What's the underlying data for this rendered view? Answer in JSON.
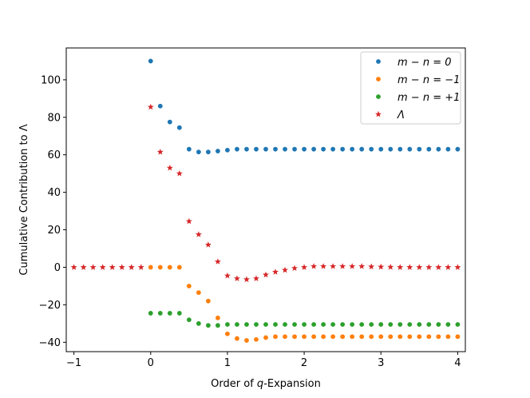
{
  "chart_data": {
    "type": "scatter",
    "xlabel_parts": {
      "pre": "Order of ",
      "var": "q",
      "post": "-Expansion"
    },
    "ylabel": "Cumulative Contribution to Λ",
    "xlim": [
      -1.1,
      4.1
    ],
    "ylim": [
      -45,
      117
    ],
    "xticks": [
      -1,
      0,
      1,
      2,
      3,
      4
    ],
    "xtick_labels": [
      "−1",
      "0",
      "1",
      "2",
      "3",
      "4"
    ],
    "yticks": [
      -40,
      -20,
      0,
      20,
      40,
      60,
      80,
      100
    ],
    "ytick_labels": [
      "−40",
      "−20",
      "0",
      "20",
      "40",
      "60",
      "80",
      "100"
    ],
    "grid": false,
    "legend_position": "top-right",
    "series": [
      {
        "name": "m − n = 0",
        "color": "#1f77b4",
        "marker": "circle",
        "x": [
          0,
          0.125,
          0.25,
          0.375,
          0.5,
          0.625,
          0.75,
          0.875,
          1,
          1.125,
          1.25,
          1.375,
          1.5,
          1.625,
          1.75,
          1.875,
          2,
          2.125,
          2.25,
          2.375,
          2.5,
          2.625,
          2.75,
          2.875,
          3,
          3.125,
          3.25,
          3.375,
          3.5,
          3.625,
          3.75,
          3.875,
          4
        ],
        "y": [
          110,
          86,
          77.5,
          74.5,
          63,
          61.5,
          61.5,
          62,
          62.5,
          63,
          63,
          63,
          63,
          63,
          63,
          63,
          63,
          63,
          63,
          63,
          63,
          63,
          63,
          63,
          63,
          63,
          63,
          63,
          63,
          63,
          63,
          63,
          63
        ]
      },
      {
        "name": "m − n = −1",
        "color": "#ff7f0e",
        "marker": "circle",
        "x": [
          0,
          0.125,
          0.25,
          0.375,
          0.5,
          0.625,
          0.75,
          0.875,
          1,
          1.125,
          1.25,
          1.375,
          1.5,
          1.625,
          1.75,
          1.875,
          2,
          2.125,
          2.25,
          2.375,
          2.5,
          2.625,
          2.75,
          2.875,
          3,
          3.125,
          3.25,
          3.375,
          3.5,
          3.625,
          3.75,
          3.875,
          4
        ],
        "y": [
          0,
          0,
          0,
          0,
          -10,
          -13.5,
          -18,
          -27,
          -35.5,
          -38,
          -39,
          -38.5,
          -37.5,
          -37,
          -37,
          -37,
          -37,
          -37,
          -37,
          -37,
          -37,
          -37,
          -37,
          -37,
          -37,
          -37,
          -37,
          -37,
          -37,
          -37,
          -37,
          -37,
          -37
        ]
      },
      {
        "name": "m − n = +1",
        "color": "#2ca02c",
        "marker": "circle",
        "x": [
          0,
          0.125,
          0.25,
          0.375,
          0.5,
          0.625,
          0.75,
          0.875,
          1,
          1.125,
          1.25,
          1.375,
          1.5,
          1.625,
          1.75,
          1.875,
          2,
          2.125,
          2.25,
          2.375,
          2.5,
          2.625,
          2.75,
          2.875,
          3,
          3.125,
          3.25,
          3.375,
          3.5,
          3.625,
          3.75,
          3.875,
          4
        ],
        "y": [
          -24.5,
          -24.5,
          -24.5,
          -24.5,
          -28,
          -30,
          -31,
          -31,
          -30.5,
          -30.5,
          -30.5,
          -30.5,
          -30.5,
          -30.5,
          -30.5,
          -30.5,
          -30.5,
          -30.5,
          -30.5,
          -30.5,
          -30.5,
          -30.5,
          -30.5,
          -30.5,
          -30.5,
          -30.5,
          -30.5,
          -30.5,
          -30.5,
          -30.5,
          -30.5,
          -30.5,
          -30.5
        ]
      },
      {
        "name": "Λ",
        "color": "#d62728",
        "marker": "star",
        "x": [
          -1,
          -0.875,
          -0.75,
          -0.625,
          -0.5,
          -0.375,
          -0.25,
          -0.125,
          0,
          0.125,
          0.25,
          0.375,
          0.5,
          0.625,
          0.75,
          0.875,
          1,
          1.125,
          1.25,
          1.375,
          1.5,
          1.625,
          1.75,
          1.875,
          2,
          2.125,
          2.25,
          2.375,
          2.5,
          2.625,
          2.75,
          2.875,
          3,
          3.125,
          3.25,
          3.375,
          3.5,
          3.625,
          3.75,
          3.875,
          4
        ],
        "y": [
          0,
          0,
          0,
          0,
          0,
          0,
          0,
          0,
          85.5,
          61.5,
          53,
          50,
          24.5,
          17.5,
          12,
          3,
          -4.5,
          -6,
          -6.5,
          -6,
          -4,
          -2.5,
          -1.5,
          -0.5,
          0,
          0.5,
          0.5,
          0.5,
          0.5,
          0.5,
          0.5,
          0.3,
          0.2,
          0.1,
          0,
          0,
          0,
          0,
          0,
          0,
          0
        ]
      }
    ]
  }
}
